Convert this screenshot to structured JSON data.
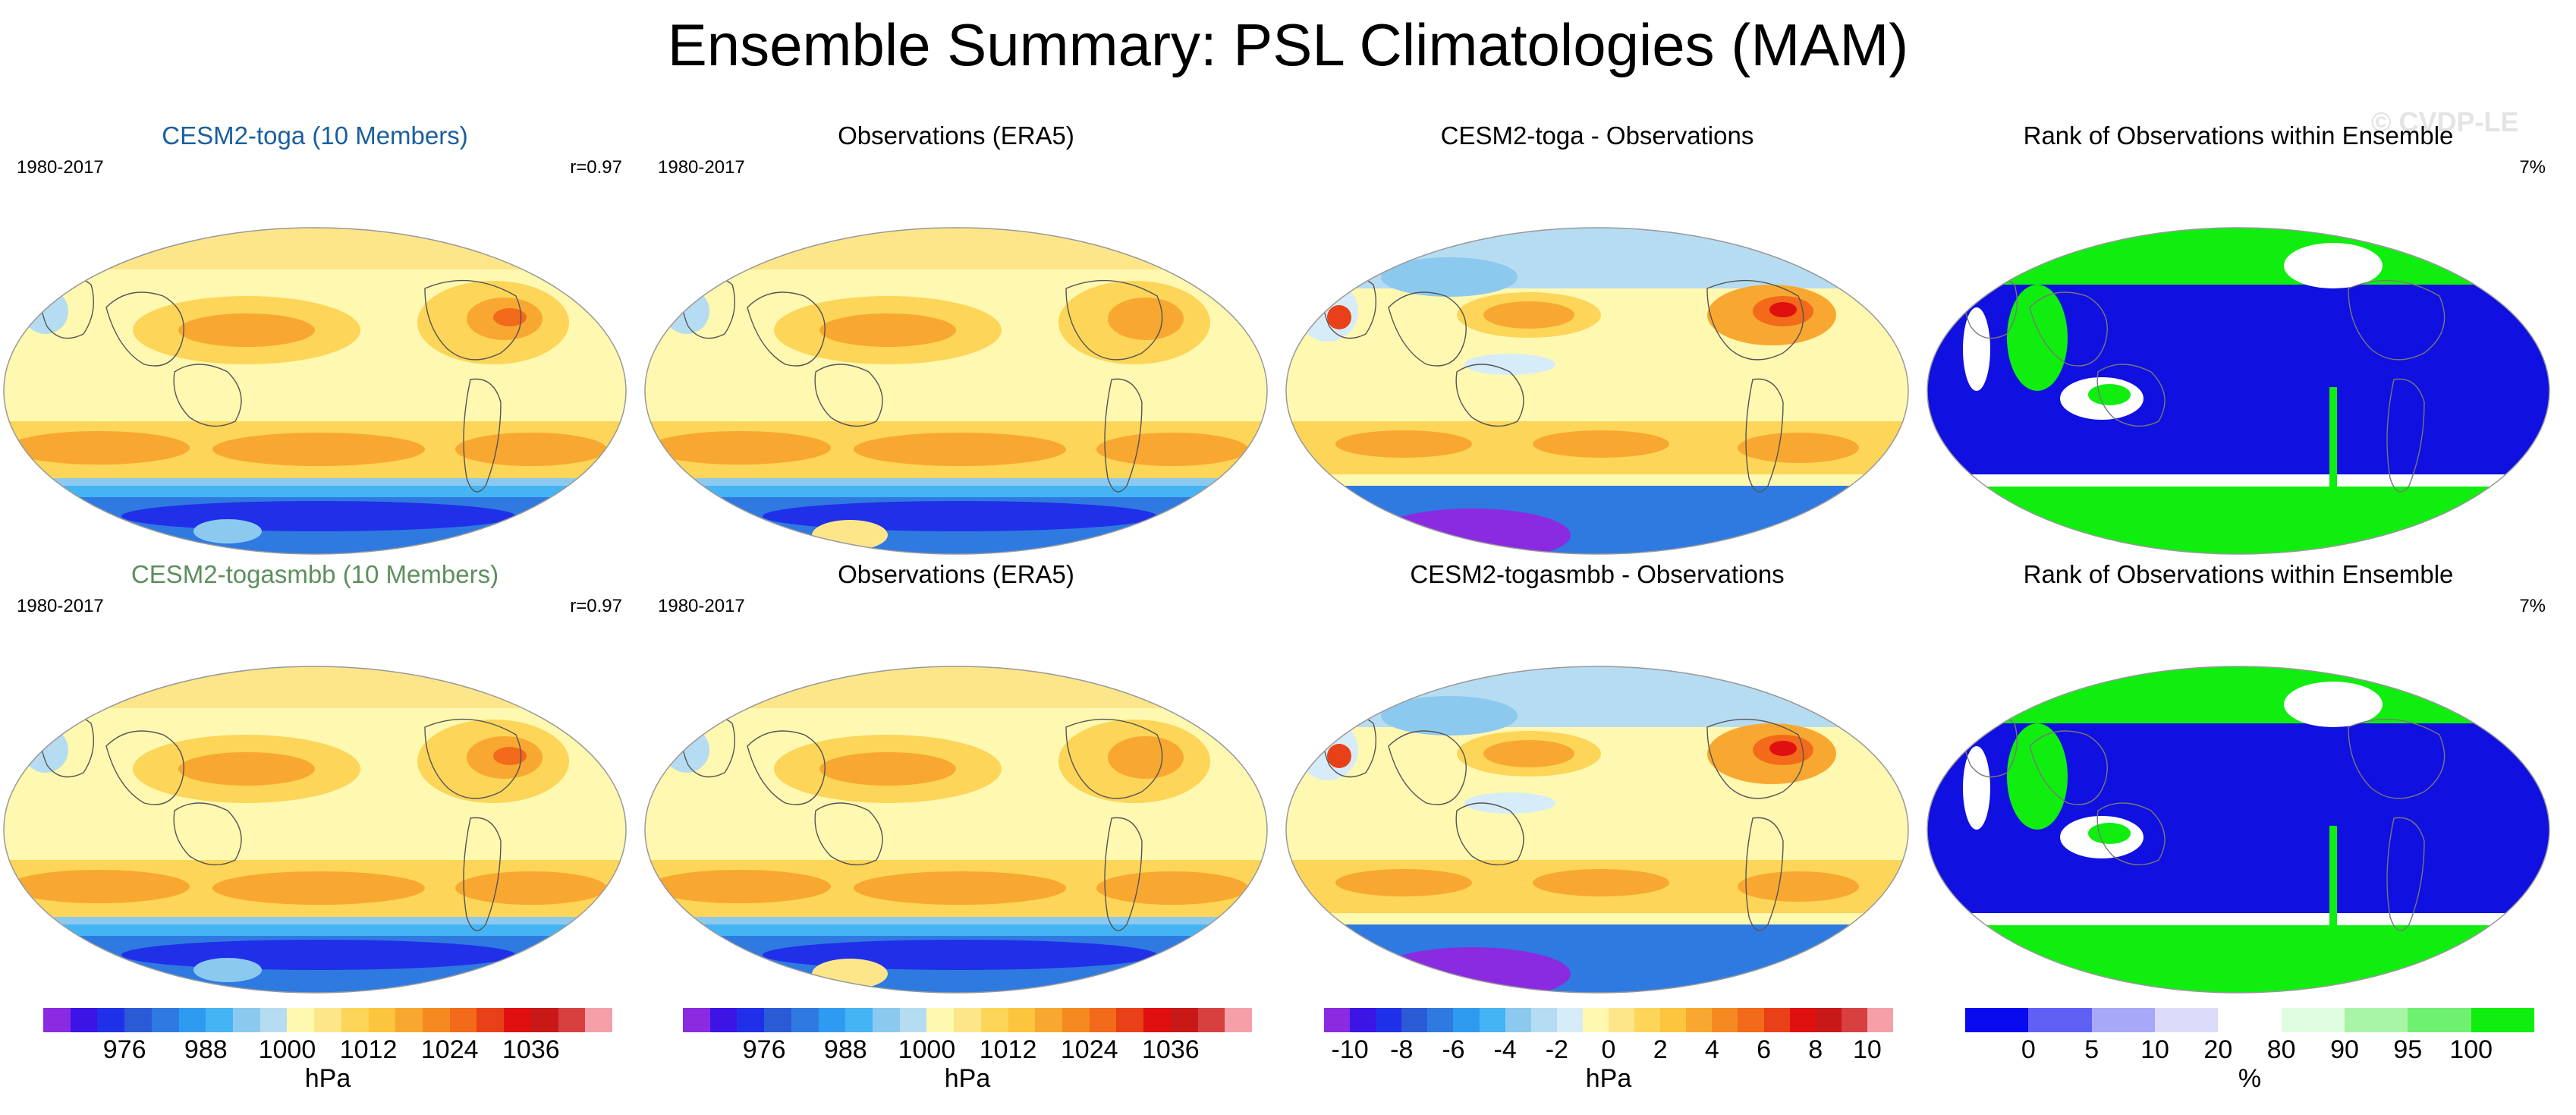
{
  "title": "Ensemble Summary: PSL Climatologies (MAM)",
  "watermark": "© CVDP-LE",
  "colors": {
    "toga": "#1a5f9e",
    "togasmbb": "#5c8f5c",
    "ocean": "#1010e0",
    "rankhigh": "#10ee10",
    "land": "#f7f7f7"
  },
  "panels": [
    {
      "title": "CESM2-toga (10 Members)",
      "left": "1980-2017",
      "right": "r=0.97",
      "kind": "ens",
      "title_color": "toga"
    },
    {
      "title": "Observations (ERA5)",
      "left": "1980-2017",
      "right": "",
      "kind": "obs",
      "title_color": "black"
    },
    {
      "title": "CESM2-toga - Observations",
      "left": "",
      "right": "",
      "kind": "diff",
      "title_color": "black"
    },
    {
      "title": "Rank of Observations within Ensemble",
      "left": "",
      "right": "7%",
      "kind": "rank",
      "title_color": "black"
    },
    {
      "title": "CESM2-togasmbb (10 Members)",
      "left": "1980-2017",
      "right": "r=0.97",
      "kind": "ens",
      "title_color": "togasmbb"
    },
    {
      "title": "Observations (ERA5)",
      "left": "1980-2017",
      "right": "",
      "kind": "obs",
      "title_color": "black"
    },
    {
      "title": "CESM2-togasmbb - Observations",
      "left": "",
      "right": "",
      "kind": "diff",
      "title_color": "black"
    },
    {
      "title": "Rank of Observations within Ensemble",
      "left": "",
      "right": "7%",
      "kind": "rank",
      "title_color": "black"
    }
  ],
  "chart_data": [
    {
      "type": "heatmap",
      "name": "psl-colorbar",
      "unit": "hPa",
      "ticks": [
        "976",
        "988",
        "1000",
        "1012",
        "1024",
        "1036"
      ],
      "levels": [
        968,
        972,
        976,
        980,
        984,
        988,
        992,
        996,
        1000,
        1004,
        1008,
        1012,
        1016,
        1020,
        1024,
        1028,
        1032,
        1036,
        1040,
        1044
      ],
      "colors": [
        "#8a2be2",
        "#3c14e6",
        "#2030e8",
        "#2a5ad6",
        "#2f7ae0",
        "#2e9bf0",
        "#45b4f5",
        "#8cc9ef",
        "#b6dcf2",
        "#fff8b0",
        "#fde68a",
        "#fcd559",
        "#fbc53d",
        "#f8a830",
        "#f58a22",
        "#f26a1a",
        "#e84018",
        "#e01010",
        "#c81818",
        "#d84040",
        "#f5a0a8"
      ]
    },
    {
      "type": "heatmap",
      "name": "diff-colorbar",
      "unit": "hPa",
      "ticks": [
        "-10",
        "-8",
        "-6",
        "-4",
        "-2",
        "0",
        "2",
        "4",
        "6",
        "8",
        "10"
      ],
      "levels": [
        -10,
        -9,
        -8,
        -7,
        -6,
        -5,
        -4,
        -3,
        -2,
        -1,
        0,
        1,
        2,
        3,
        4,
        5,
        6,
        7,
        8,
        9,
        10
      ],
      "colors": [
        "#8a2be2",
        "#3c14e6",
        "#2030e8",
        "#2a5ad6",
        "#2f7ae0",
        "#2e9bf0",
        "#45b4f5",
        "#8cc9ef",
        "#b6dcf2",
        "#d6ecf8",
        "#fff8b0",
        "#fde68a",
        "#fcd559",
        "#fbc53d",
        "#f8a830",
        "#f58a22",
        "#f26a1a",
        "#e84018",
        "#e01010",
        "#c81818",
        "#d84040",
        "#f5a0a8"
      ]
    },
    {
      "type": "heatmap",
      "name": "rank-colorbar",
      "unit": "%",
      "ticks": [
        "0",
        "5",
        "10",
        "20",
        "80",
        "90",
        "95",
        "100"
      ],
      "levels": [
        0,
        5,
        10,
        20,
        80,
        90,
        95,
        100
      ],
      "colors": [
        "#0a0af0",
        "#6060f5",
        "#a8a8f8",
        "#dcdcfa",
        "#ffffff",
        "#e0fce0",
        "#a8f5a8",
        "#70f070",
        "#10ee10"
      ]
    }
  ]
}
